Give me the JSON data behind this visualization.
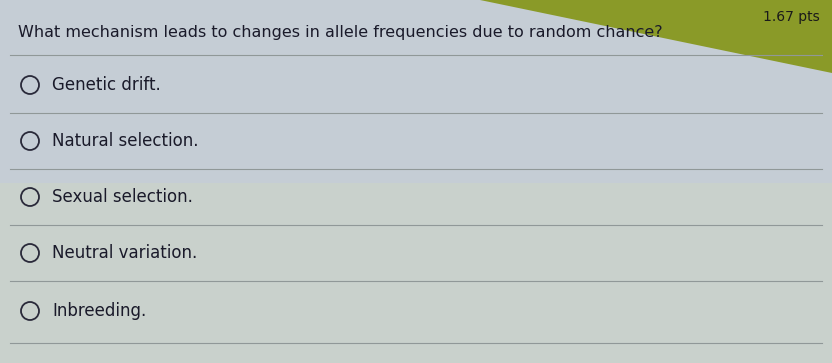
{
  "question": "What mechanism leads to changes in allele frequencies due to random chance?",
  "options": [
    "Genetic drift.",
    "Natural selection.",
    "Sexual selection.",
    "Neutral variation.",
    "Inbreeding."
  ],
  "pts_label": "1.67 pts",
  "bg_color_main": "#c8cfd8",
  "bg_color_bottom": "#d0d8c8",
  "top_strip_color": "#8a9a30",
  "line_color": "#909898",
  "text_color": "#1a1a2a",
  "pts_text_color": "#1a1a1a",
  "question_fontsize": 11.5,
  "option_fontsize": 12,
  "pts_fontsize": 10
}
